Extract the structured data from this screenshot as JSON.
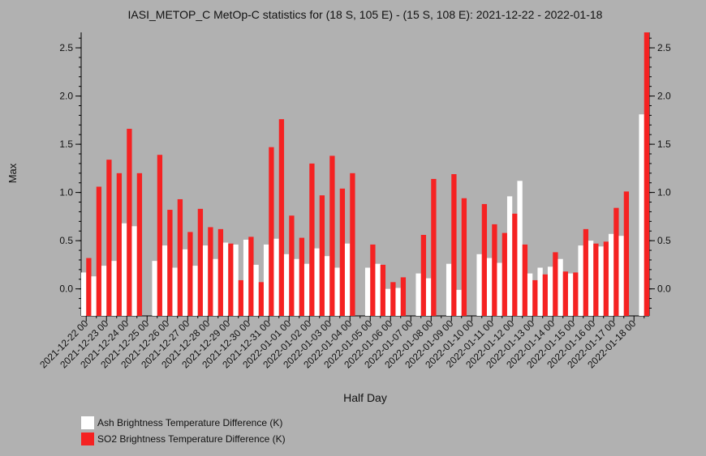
{
  "chart_data": {
    "type": "bar",
    "title": "IASI_METOP_C MetOp-C statistics for (18 S, 105 E) - (15 S, 108 E): 2021-12-22 - 2022-01-18",
    "xlabel": "Half Day",
    "ylabel": "Max",
    "ylim": [
      -0.28,
      2.66
    ],
    "yticks": [
      0.0,
      0.5,
      1.0,
      1.5,
      2.0,
      2.5
    ],
    "ytick_labels": [
      "0.0",
      "0.5",
      "1.0",
      "1.5",
      "2.0",
      "2.5"
    ],
    "tick_labels": [
      "2021-12-22 00",
      "2021-12-23 00",
      "2021-12-24 00",
      "2021-12-25 00",
      "2021-12-26 00",
      "2021-12-27 00",
      "2021-12-28 00",
      "2021-12-29 00",
      "2021-12-30 00",
      "2021-12-31 00",
      "2022-01-01 00",
      "2022-01-02 00",
      "2022-01-03 00",
      "2022-01-04 00",
      "2022-01-05 00",
      "2022-01-06 00",
      "2022-01-07 00",
      "2022-01-08 00",
      "2022-01-09 00",
      "2022-01-10 00",
      "2022-01-11 00",
      "2022-01-12 00",
      "2022-01-13 00",
      "2022-01-14 00",
      "2022-01-15 00",
      "2022-01-16 00",
      "2022-01-17 00",
      "2022-01-18 00"
    ],
    "colors": {
      "background": "#b1b1b1",
      "ash": "#ffffff",
      "so2": "#f52222"
    },
    "series": [
      {
        "name": "Ash Brightness Temperature Difference (K)",
        "values": [
          0.17,
          0.13,
          0.24,
          0.29,
          0.68,
          0.65,
          null,
          0.29,
          0.45,
          0.22,
          0.41,
          0.24,
          0.45,
          0.31,
          0.48,
          0.46,
          0.51,
          0.25,
          0.46,
          0.52,
          0.36,
          0.31,
          0.26,
          0.42,
          0.34,
          0.22,
          0.47,
          null,
          0.22,
          0.26,
          0.0,
          0.01,
          null,
          0.16,
          0.11,
          null,
          0.26,
          -0.01,
          null,
          0.36,
          0.32,
          0.27,
          0.96,
          1.12,
          0.16,
          0.22,
          0.23,
          0.31,
          0.16,
          0.45,
          0.5,
          0.44,
          0.57,
          0.55,
          null,
          1.81
        ]
      },
      {
        "name": "SO2 Brightness Temperature Difference (K)",
        "values": [
          0.32,
          1.06,
          1.34,
          1.2,
          1.66,
          1.2,
          null,
          1.39,
          0.82,
          0.93,
          0.59,
          0.83,
          0.64,
          0.62,
          0.47,
          0.09,
          0.54,
          0.07,
          1.47,
          1.76,
          0.76,
          0.53,
          1.3,
          0.97,
          1.38,
          1.04,
          1.2,
          null,
          0.46,
          0.25,
          0.07,
          0.12,
          null,
          0.56,
          1.14,
          null,
          1.19,
          0.94,
          null,
          0.88,
          0.67,
          0.58,
          0.78,
          0.46,
          0.09,
          0.15,
          0.38,
          0.18,
          0.17,
          0.62,
          0.47,
          0.49,
          0.84,
          1.01,
          null,
          2.66
        ]
      }
    ]
  }
}
